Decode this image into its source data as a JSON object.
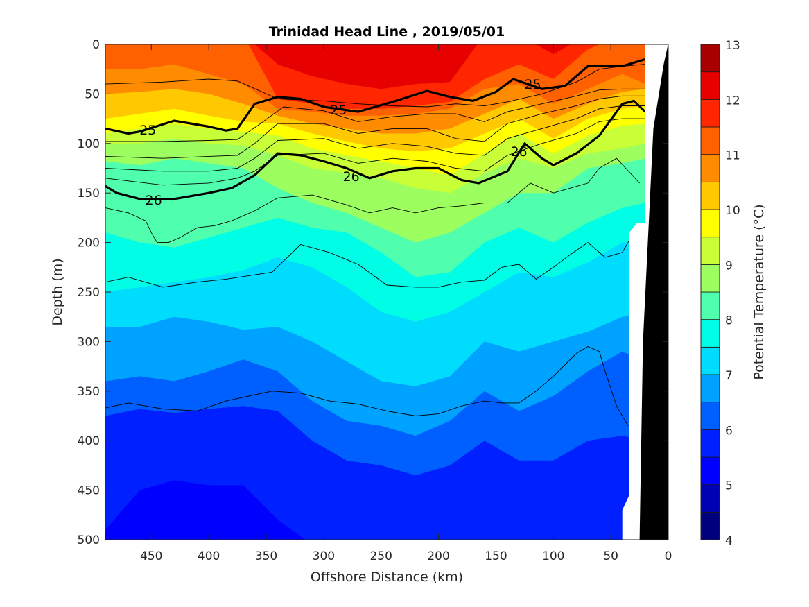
{
  "chart_data": {
    "type": "contour",
    "title": "Trinidad Head Line , 2019/05/01",
    "xlabel": "Offshore Distance (km)",
    "ylabel": "Depth (m)",
    "colorbar_label": "Potential Temperature (°C)",
    "xlim": [
      490,
      0
    ],
    "x_reversed": true,
    "ylim": [
      500,
      0
    ],
    "y_reversed": true,
    "xticks": [
      450,
      400,
      350,
      300,
      250,
      200,
      150,
      100,
      50,
      0
    ],
    "yticks": [
      0,
      50,
      100,
      150,
      200,
      250,
      300,
      350,
      400,
      450,
      500
    ],
    "colorbar": {
      "range": [
        4,
        13
      ],
      "step": 0.5,
      "ticks": [
        4,
        5,
        6,
        7,
        8,
        9,
        10,
        11,
        12,
        13
      ],
      "colors": [
        "#00007f",
        "#0000b5",
        "#0000ff",
        "#0020ff",
        "#0060ff",
        "#00a2ff",
        "#00dcfe",
        "#00fee6",
        "#50ffad",
        "#9cff5f",
        "#c8ff36",
        "#ffff00",
        "#ffc800",
        "#ff8c00",
        "#ff6000",
        "#ff2600",
        "#e60000",
        "#a80000"
      ]
    },
    "stations_km": [
      490,
      460,
      430,
      400,
      370,
      340,
      310,
      280,
      250,
      220,
      190,
      160,
      130,
      100,
      70,
      40,
      20
    ],
    "isotherms": [
      {
        "temp": 12.5,
        "depth_m": [
          -10,
          -10,
          -10,
          -10,
          -10,
          -10,
          -10,
          -10,
          14,
          -10,
          -10,
          -10,
          -10,
          -10,
          -10,
          14,
          -10
        ]
      },
      {
        "temp": 12.0,
        "depth_m": [
          -10,
          -10,
          -10,
          -10,
          -10,
          20,
          32,
          40,
          45,
          40,
          38,
          -10,
          -10,
          10,
          -10,
          -10,
          -10
        ]
      },
      {
        "temp": 11.5,
        "depth_m": [
          -10,
          -10,
          -10,
          -10,
          -10,
          55,
          60,
          65,
          65,
          62,
          58,
          35,
          20,
          35,
          5,
          -10,
          -10
        ]
      },
      {
        "temp": 11.0,
        "depth_m": [
          25,
          25,
          20,
          30,
          40,
          65,
          68,
          72,
          72,
          70,
          65,
          45,
          40,
          60,
          45,
          30,
          40
        ]
      },
      {
        "temp": 10.5,
        "depth_m": [
          50,
          48,
          45,
          50,
          60,
          72,
          80,
          85,
          90,
          90,
          85,
          70,
          55,
          75,
          60,
          48,
          45
        ]
      },
      {
        "temp": 10.0,
        "depth_m": [
          75,
          70,
          65,
          72,
          78,
          80,
          90,
          98,
          105,
          108,
          105,
          90,
          75,
          95,
          75,
          65,
          62
        ]
      },
      {
        "temp": 9.5,
        "depth_m": [
          90,
          85,
          80,
          85,
          88,
          92,
          105,
          112,
          118,
          125,
          132,
          110,
          90,
          110,
          92,
          82,
          80
        ]
      },
      {
        "temp": 9.0,
        "depth_m": [
          100,
          100,
          95,
          100,
          102,
          112,
          125,
          130,
          135,
          145,
          150,
          130,
          115,
          125,
          110,
          105,
          100
        ]
      },
      {
        "temp": 8.5,
        "depth_m": [
          118,
          122,
          115,
          120,
          125,
          145,
          160,
          170,
          185,
          200,
          190,
          170,
          150,
          150,
          125,
          120,
          115
        ]
      },
      {
        "temp": 8.0,
        "depth_m": [
          190,
          200,
          205,
          195,
          185,
          175,
          185,
          190,
          210,
          235,
          230,
          200,
          185,
          200,
          180,
          165,
          160
        ]
      },
      {
        "temp": 7.5,
        "depth_m": [
          250,
          245,
          240,
          235,
          228,
          215,
          225,
          245,
          270,
          280,
          270,
          250,
          230,
          235,
          220,
          200,
          200
        ]
      },
      {
        "temp": 7.0,
        "depth_m": [
          285,
          285,
          275,
          280,
          288,
          285,
          300,
          320,
          340,
          345,
          335,
          300,
          310,
          300,
          290,
          275,
          270
        ]
      },
      {
        "temp": 6.5,
        "depth_m": [
          340,
          335,
          340,
          330,
          318,
          330,
          360,
          380,
          385,
          395,
          380,
          350,
          370,
          355,
          330,
          310,
          320
        ]
      },
      {
        "temp": 6.0,
        "depth_m": [
          375,
          368,
          372,
          368,
          365,
          370,
          400,
          420,
          425,
          435,
          425,
          400,
          420,
          420,
          400,
          395,
          400
        ]
      },
      {
        "temp": 5.5,
        "depth_m": [
          490,
          450,
          440,
          445,
          445,
          480,
          505,
          510,
          510,
          510,
          510,
          510,
          510,
          510,
          510,
          510,
          510
        ]
      },
      {
        "temp": 5.0,
        "depth_m": [
          510,
          510,
          510,
          510,
          510,
          510,
          510,
          510,
          510,
          510,
          510,
          510,
          510,
          510,
          510,
          510,
          510
        ]
      }
    ],
    "isopycnals_thick": [
      {
        "label": "25",
        "distance_km": [
          490,
          470,
          460,
          430,
          400,
          385,
          375,
          360,
          340,
          320,
          300,
          270,
          240,
          210,
          190,
          170,
          150,
          135,
          110,
          90,
          70,
          40,
          20
        ],
        "depth_m": [
          85,
          90,
          88,
          77,
          83,
          87,
          85,
          60,
          53,
          55,
          63,
          68,
          58,
          47,
          53,
          57,
          48,
          35,
          45,
          42,
          22,
          22,
          15
        ]
      },
      {
        "label": "26",
        "distance_km": [
          490,
          480,
          460,
          430,
          400,
          380,
          360,
          340,
          320,
          300,
          280,
          260,
          240,
          220,
          200,
          180,
          165,
          140,
          125,
          110,
          100,
          80,
          60,
          40,
          30,
          20
        ],
        "depth_m": [
          143,
          150,
          156,
          156,
          150,
          145,
          132,
          110,
          112,
          118,
          125,
          135,
          128,
          125,
          125,
          137,
          140,
          128,
          100,
          115,
          122,
          110,
          92,
          60,
          57,
          68
        ]
      }
    ],
    "isopycnal_labels": [
      {
        "text": "25",
        "distance_km": 453,
        "depth_m": 86
      },
      {
        "text": "25",
        "distance_km": 287,
        "depth_m": 66
      },
      {
        "text": "25",
        "distance_km": 118,
        "depth_m": 40
      },
      {
        "text": "26",
        "distance_km": 448,
        "depth_m": 157
      },
      {
        "text": "26",
        "distance_km": 276,
        "depth_m": 133
      },
      {
        "text": "26",
        "distance_km": 130,
        "depth_m": 108
      }
    ],
    "isopycnals_thin": [
      {
        "distance_km": [
          490,
          440,
          400,
          375,
          340,
          300,
          270,
          240,
          210,
          185,
          160,
          140,
          110,
          80,
          60,
          40,
          20
        ],
        "depth_m": [
          40,
          38,
          35,
          37,
          55,
          57,
          60,
          62,
          63,
          60,
          62,
          58,
          50,
          38,
          25,
          22,
          20
        ]
      },
      {
        "distance_km": [
          490,
          440,
          400,
          375,
          355,
          335,
          300,
          270,
          240,
          210,
          185,
          160,
          140,
          110,
          80,
          60,
          40,
          20
        ],
        "depth_m": [
          98,
          98,
          97,
          96,
          80,
          63,
          67,
          78,
          73,
          70,
          70,
          78,
          68,
          60,
          52,
          46,
          45,
          45
        ]
      },
      {
        "distance_km": [
          490,
          440,
          400,
          375,
          360,
          340,
          300,
          270,
          240,
          210,
          185,
          160,
          140,
          110,
          80,
          60,
          40,
          20
        ],
        "depth_m": [
          113,
          115,
          113,
          112,
          100,
          80,
          80,
          90,
          85,
          85,
          95,
          98,
          80,
          70,
          62,
          55,
          52,
          52
        ]
      },
      {
        "distance_km": [
          490,
          440,
          400,
          375,
          360,
          340,
          300,
          270,
          240,
          210,
          185,
          160,
          140,
          110,
          80,
          60,
          40,
          20
        ],
        "depth_m": [
          125,
          128,
          128,
          125,
          115,
          97,
          95,
          105,
          100,
          103,
          110,
          112,
          95,
          85,
          75,
          65,
          62,
          62
        ]
      },
      {
        "distance_km": [
          490,
          440,
          400,
          375,
          360,
          340,
          300,
          270,
          240,
          210,
          185,
          160,
          140,
          110,
          80,
          60,
          40,
          20
        ],
        "depth_m": [
          135,
          142,
          140,
          135,
          128,
          112,
          110,
          120,
          115,
          118,
          125,
          128,
          112,
          100,
          90,
          78,
          75,
          75
        ]
      },
      {
        "distance_km": [
          490,
          470,
          455,
          450,
          445,
          435,
          425,
          410,
          395,
          380,
          360,
          340,
          310,
          280,
          260,
          240,
          220,
          200,
          180,
          160,
          140,
          120,
          100,
          85,
          70,
          60,
          45,
          25
        ],
        "depth_m": [
          165,
          170,
          178,
          190,
          200,
          200,
          195,
          185,
          183,
          178,
          168,
          155,
          152,
          162,
          170,
          165,
          170,
          165,
          163,
          160,
          160,
          140,
          150,
          145,
          140,
          125,
          115,
          140
        ]
      },
      {
        "distance_km": [
          490,
          470,
          440,
          410,
          385,
          345,
          320,
          295,
          270,
          245,
          220,
          200,
          180,
          160,
          145,
          130,
          115,
          100,
          85,
          70,
          55,
          40,
          30,
          20
        ],
        "depth_m": [
          240,
          235,
          245,
          240,
          237,
          230,
          202,
          210,
          222,
          243,
          245,
          245,
          240,
          238,
          225,
          222,
          237,
          225,
          212,
          200,
          215,
          210,
          190,
          180
        ]
      },
      {
        "distance_km": [
          490,
          470,
          440,
          410,
          385,
          345,
          320,
          295,
          270,
          245,
          220,
          200,
          180,
          160,
          145,
          130,
          115,
          100,
          80,
          70,
          60,
          55,
          45,
          35
        ],
        "depth_m": [
          367,
          362,
          368,
          370,
          360,
          350,
          352,
          360,
          363,
          370,
          375,
          373,
          365,
          360,
          362,
          362,
          350,
          335,
          312,
          305,
          310,
          330,
          365,
          385
        ]
      }
    ],
    "masks": {
      "no_data_white": "right edge of section (near-shore, 0–40 km)",
      "bathymetry_black": "sea floor / land wedge at 0–30 km"
    }
  }
}
